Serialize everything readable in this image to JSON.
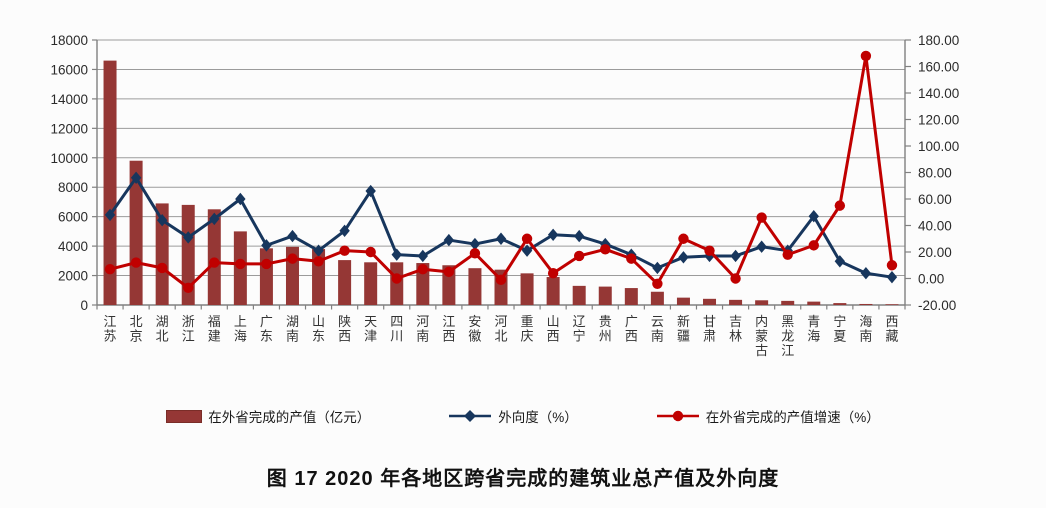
{
  "figure": {
    "caption": "图 17  2020 年各地区跨省完成的建筑业总产值及外向度"
  },
  "colors": {
    "bar": "#953735",
    "line_blue": "#17365D",
    "line_red": "#C00000",
    "grid": "#9b9b9b",
    "axis": "#808080"
  },
  "chart_data": {
    "type": "bar",
    "title": "图 17  2020 年各地区跨省完成的建筑业总产值及外向度",
    "categories": [
      "江苏",
      "北京",
      "湖北",
      "浙江",
      "福建",
      "上海",
      "广东",
      "湖南",
      "山东",
      "陕西",
      "天津",
      "四川",
      "河南",
      "江西",
      "安徽",
      "河北",
      "重庆",
      "山西",
      "辽宁",
      "贵州",
      "广西",
      "云南",
      "新疆",
      "甘肃",
      "吉林",
      "内蒙古",
      "黑龙江",
      "青海",
      "宁夏",
      "海南",
      "西藏"
    ],
    "series": [
      {
        "name": "在外省完成的产值（亿元）",
        "chart_type": "bar",
        "axis": "left",
        "color": "#953735",
        "values": [
          16600,
          9800,
          6900,
          6800,
          6500,
          5000,
          3850,
          3950,
          3800,
          3050,
          2900,
          2900,
          2850,
          2700,
          2500,
          2400,
          2150,
          1900,
          1300,
          1250,
          1150,
          900,
          500,
          420,
          350,
          320,
          280,
          230,
          130,
          70,
          50
        ]
      },
      {
        "name": "外向度（%）",
        "chart_type": "line",
        "marker": "diamond",
        "axis": "right",
        "color": "#17365D",
        "values": [
          48,
          76,
          44,
          31,
          45,
          60,
          25,
          32,
          21,
          36,
          66,
          18,
          17,
          29,
          26,
          30,
          21,
          33,
          32,
          26,
          18,
          8,
          16,
          17,
          17,
          24,
          21,
          47,
          13,
          4,
          1
        ]
      },
      {
        "name": "在外省完成的产值增速（%）",
        "chart_type": "line",
        "marker": "circle",
        "axis": "right",
        "color": "#C00000",
        "values": [
          7,
          12,
          8,
          -7,
          12,
          11,
          11,
          15,
          13,
          21,
          20,
          0,
          7,
          5,
          19,
          -1,
          30,
          4,
          17,
          22,
          15,
          -4,
          30,
          21,
          0,
          46,
          18,
          25,
          55,
          168,
          10
        ]
      }
    ],
    "left_axis": {
      "min": 0,
      "max": 18000,
      "step": 2000,
      "ticks": [
        "0",
        "2000",
        "4000",
        "6000",
        "8000",
        "10000",
        "12000",
        "14000",
        "16000",
        "18000"
      ]
    },
    "right_axis": {
      "min": -20,
      "max": 180,
      "step": 20,
      "ticks": [
        "-20.00",
        "0.00",
        "20.00",
        "40.00",
        "60.00",
        "80.00",
        "100.00",
        "120.00",
        "140.00",
        "160.00",
        "180.00"
      ]
    },
    "grid": true,
    "legend_position": "bottom",
    "xlabel": "",
    "ylabel": ""
  }
}
